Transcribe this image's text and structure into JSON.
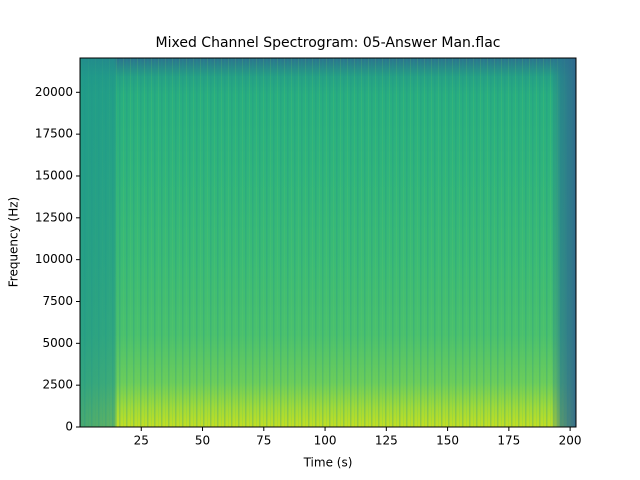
{
  "chart_data": {
    "type": "spectrogram",
    "title": "Mixed Channel Spectrogram: 05-Answer Man.flac",
    "x_label": "Time (s)",
    "y_label": "Frequency (Hz)",
    "xlim": [
      0,
      202.4
    ],
    "ylim": [
      0,
      22050
    ],
    "xticks": [
      25,
      50,
      75,
      100,
      125,
      150,
      175,
      200
    ],
    "yticks": [
      0,
      2500,
      5000,
      7500,
      10000,
      12500,
      15000,
      17500,
      20000
    ],
    "colormap": "viridis"
  }
}
